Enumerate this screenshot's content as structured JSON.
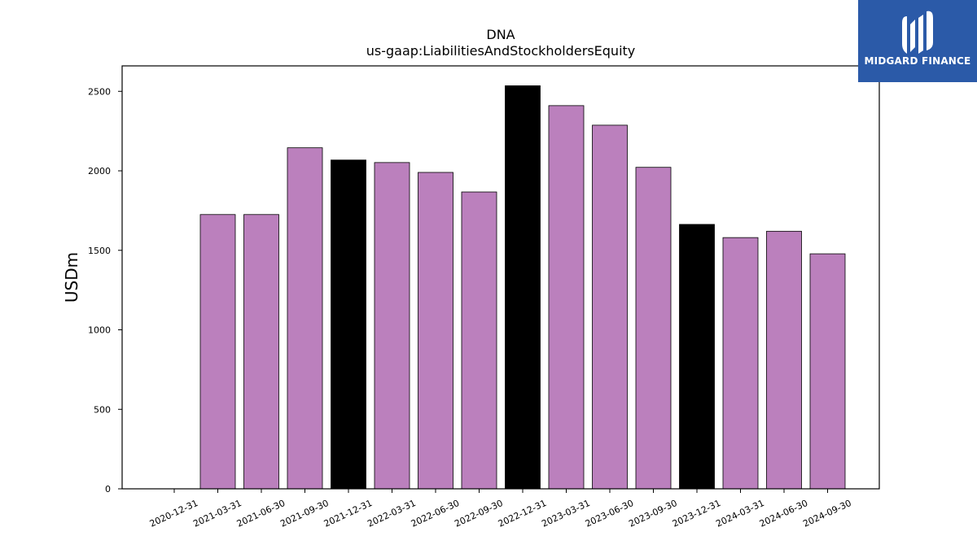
{
  "chart_data": {
    "type": "bar",
    "title": "DNA",
    "subtitle": "us-gaap:LiabilitiesAndStockholdersEquity",
    "ylabel": "USDm",
    "xlabel": "",
    "ylim": [
      0,
      2660
    ],
    "yticks": [
      0,
      500,
      1000,
      1500,
      2000,
      2500
    ],
    "categories": [
      "2020-12-31",
      "2021-03-31",
      "2021-06-30",
      "2021-09-30",
      "2021-12-31",
      "2022-03-31",
      "2022-06-30",
      "2022-09-30",
      "2022-12-31",
      "2023-03-31",
      "2023-06-30",
      "2023-09-30",
      "2023-12-31",
      "2024-03-31",
      "2024-06-30",
      "2024-09-30"
    ],
    "values": [
      0,
      1725,
      1725,
      2145,
      2068,
      2052,
      1990,
      1867,
      2535,
      2410,
      2287,
      2022,
      1663,
      1580,
      1620,
      1478
    ],
    "bar_colors": [
      "#bb80bd",
      "#bb80bd",
      "#bb80bd",
      "#bb80bd",
      "#000000",
      "#bb80bd",
      "#bb80bd",
      "#bb80bd",
      "#000000",
      "#bb80bd",
      "#bb80bd",
      "#bb80bd",
      "#000000",
      "#bb80bd",
      "#bb80bd",
      "#bb80bd"
    ],
    "grid": false,
    "legend": "none"
  },
  "logo": {
    "text": "MIDGARD FINANCE",
    "color": "#2b5aa8"
  }
}
